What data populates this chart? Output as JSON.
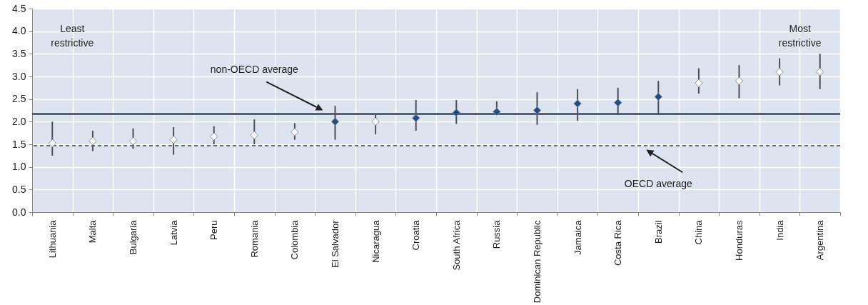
{
  "chart_data": {
    "type": "scatter",
    "categories": [
      "Lithuania",
      "Malta",
      "Bulgaria",
      "Latvia",
      "Peru",
      "Romania",
      "Colombia",
      "El Salvador",
      "Nicaragua",
      "Croatia",
      "South Africa",
      "Russia",
      "Dominican Republic",
      "Jamaica",
      "Costa Rica",
      "Brazil",
      "China",
      "Honduras",
      "India",
      "Argentina"
    ],
    "series": [
      {
        "color": "#ffffff",
        "values": [
          1.52,
          1.57,
          1.57,
          1.6,
          1.67,
          1.7,
          1.77,
          null,
          2.0,
          null,
          null,
          null,
          null,
          null,
          null,
          null,
          2.85,
          2.9,
          3.1,
          3.1
        ],
        "errors": [
          [
            1.25,
            2.0
          ],
          [
            1.35,
            1.8
          ],
          [
            1.4,
            1.85
          ],
          [
            1.27,
            1.88
          ],
          [
            1.5,
            1.9
          ],
          [
            1.5,
            2.05
          ],
          [
            1.6,
            1.97
          ],
          null,
          [
            1.72,
            2.15
          ],
          null,
          null,
          null,
          null,
          null,
          null,
          null,
          [
            2.62,
            3.18
          ],
          [
            2.52,
            3.25
          ],
          [
            2.8,
            3.4
          ],
          [
            2.72,
            3.5
          ]
        ]
      },
      {
        "color": "#1f4e85",
        "values": [
          null,
          null,
          null,
          null,
          null,
          null,
          null,
          2.0,
          null,
          2.08,
          2.2,
          2.22,
          2.25,
          2.4,
          2.42,
          2.55,
          null,
          null,
          null,
          null
        ],
        "errors": [
          null,
          null,
          null,
          null,
          null,
          null,
          null,
          [
            1.6,
            2.35
          ],
          null,
          [
            1.8,
            2.48
          ],
          [
            1.95,
            2.48
          ],
          [
            2.15,
            2.45
          ],
          [
            1.93,
            2.65
          ],
          [
            2.02,
            2.72
          ],
          [
            2.15,
            2.75
          ],
          [
            2.15,
            2.9
          ],
          null,
          null,
          null,
          null
        ]
      }
    ],
    "ylim": [
      0,
      4.5
    ],
    "yticks": [
      {
        "value": 0,
        "label": "0.0"
      },
      {
        "value": 0.5,
        "label": "0.5"
      },
      {
        "value": 1,
        "label": "1.0"
      },
      {
        "value": 1.5,
        "label": "1.5"
      },
      {
        "value": 2,
        "label": "2.0"
      },
      {
        "value": 2.5,
        "label": "2.5"
      },
      {
        "value": 3,
        "label": "3.0"
      },
      {
        "value": 3.5,
        "label": "3.5"
      },
      {
        "value": 4,
        "label": "4.0"
      },
      {
        "value": 4.5,
        "label": "4.5"
      }
    ],
    "ref_lines": [
      {
        "axis": "y",
        "value": 2.17,
        "label": "non-OECD average",
        "color": "#596070",
        "line_style": "solid"
      },
      {
        "axis": "y",
        "value": 1.47,
        "label": "OECD average",
        "color": "#404040",
        "line_style": "dashed"
      }
    ],
    "annotations": [
      "Least restrictive",
      "Most restrictive"
    ],
    "marker": "diamond",
    "grid": true
  }
}
